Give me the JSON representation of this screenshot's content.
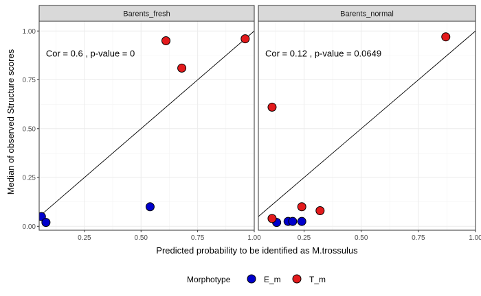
{
  "chart_data": {
    "type": "scatter",
    "xlabel": "Predicted probability to be identified as M.trossulus",
    "ylabel": "Median of observed Structure scores",
    "xlim": [
      0.05,
      1.0
    ],
    "ylim": [
      -0.02,
      1.05
    ],
    "x_ticks": [
      "0.25",
      "0.50",
      "0.75",
      "1.00"
    ],
    "y_ticks": [
      "0.00",
      "0.25",
      "0.50",
      "0.75",
      "1.00"
    ],
    "grid": true,
    "legend": {
      "title": "Morphotype",
      "position": "bottom",
      "entries": [
        {
          "label": "E_m",
          "color": "#0000cc"
        },
        {
          "label": "T_m",
          "color": "#e31a1c"
        }
      ]
    },
    "reference_line": {
      "slope": 1,
      "intercept": 0
    },
    "panels": [
      {
        "name": "Barents_fresh",
        "annotation": "Cor =  0.6 , p-value =  0",
        "points": [
          {
            "x": 0.06,
            "y": 0.05,
            "group": "E_m"
          },
          {
            "x": 0.08,
            "y": 0.02,
            "group": "E_m"
          },
          {
            "x": 0.54,
            "y": 0.1,
            "group": "E_m"
          },
          {
            "x": 0.61,
            "y": 0.95,
            "group": "T_m"
          },
          {
            "x": 0.68,
            "y": 0.81,
            "group": "T_m"
          },
          {
            "x": 0.96,
            "y": 0.96,
            "group": "T_m"
          }
        ]
      },
      {
        "name": "Barents_normal",
        "annotation": "Cor =  0.12 , p-value =  0.0649",
        "points": [
          {
            "x": 0.13,
            "y": 0.02,
            "group": "E_m"
          },
          {
            "x": 0.18,
            "y": 0.025,
            "group": "E_m"
          },
          {
            "x": 0.2,
            "y": 0.025,
            "group": "E_m"
          },
          {
            "x": 0.24,
            "y": 0.025,
            "group": "E_m"
          },
          {
            "x": 0.11,
            "y": 0.04,
            "group": "T_m"
          },
          {
            "x": 0.24,
            "y": 0.1,
            "group": "T_m"
          },
          {
            "x": 0.32,
            "y": 0.08,
            "group": "T_m"
          },
          {
            "x": 0.11,
            "y": 0.61,
            "group": "T_m"
          },
          {
            "x": 0.87,
            "y": 0.97,
            "group": "T_m"
          }
        ]
      }
    ]
  }
}
